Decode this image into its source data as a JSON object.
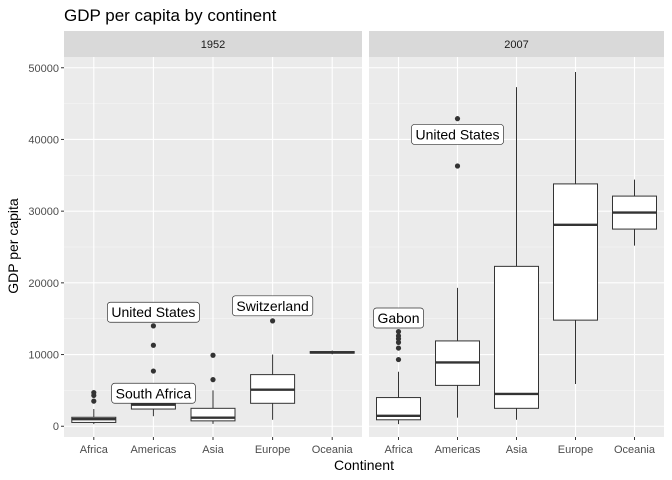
{
  "chart_data": {
    "type": "boxplot",
    "title": "GDP per capita by continent",
    "xlabel": "Continent",
    "ylabel": "GDP per capita",
    "ylim": [
      -1500,
      51500
    ],
    "yticks": [
      0,
      10000,
      20000,
      30000,
      40000,
      50000
    ],
    "ytick_labels": [
      "0",
      "10000",
      "20000",
      "30000",
      "40000",
      "50000"
    ],
    "categories": [
      "Africa",
      "Americas",
      "Asia",
      "Europe",
      "Oceania"
    ],
    "grid": true,
    "legend": "none",
    "facets": [
      {
        "label": "1952",
        "boxes": [
          {
            "category": "Africa",
            "min": 300,
            "q1": 530,
            "median": 990,
            "q3": 1250,
            "max": 2400,
            "outliers": [
              3500,
              4300,
              4700
            ]
          },
          {
            "category": "Americas",
            "min": 1400,
            "q1": 2400,
            "median": 3000,
            "q3": 3500,
            "max": 5000,
            "outliers": [
              7700,
              11300,
              14000
            ]
          },
          {
            "category": "Asia",
            "min": 330,
            "q1": 750,
            "median": 1200,
            "q3": 2500,
            "max": 5000,
            "outliers": [
              6500,
              9900
            ]
          },
          {
            "category": "Europe",
            "min": 900,
            "q1": 3200,
            "median": 5100,
            "q3": 7200,
            "max": 10000,
            "outliers": [
              14700
            ]
          },
          {
            "category": "Oceania",
            "min": 10040,
            "q1": 10190,
            "median": 10300,
            "q3": 10420,
            "max": 10560,
            "outliers": []
          }
        ],
        "annotations": [
          {
            "text": "South Africa",
            "category": "Americas",
            "y": 4600
          },
          {
            "text": "United States",
            "category": "Americas",
            "y": 15900
          },
          {
            "text": "Switzerland",
            "category": "Europe",
            "y": 16800
          }
        ]
      },
      {
        "label": "2007",
        "boxes": [
          {
            "category": "Africa",
            "min": 300,
            "q1": 900,
            "median": 1450,
            "q3": 4000,
            "max": 7600,
            "outliers": [
              9300,
              10900,
              11700,
              12200,
              12600,
              13200
            ]
          },
          {
            "category": "Americas",
            "min": 1200,
            "q1": 5700,
            "median": 8900,
            "q3": 11900,
            "max": 19300,
            "outliers": [
              36300,
              42900
            ]
          },
          {
            "category": "Asia",
            "min": 900,
            "q1": 2500,
            "median": 4500,
            "q3": 22300,
            "max": 47300,
            "outliers": []
          },
          {
            "category": "Europe",
            "min": 5900,
            "q1": 14800,
            "median": 28100,
            "q3": 33800,
            "max": 49400,
            "outliers": []
          },
          {
            "category": "Oceania",
            "min": 25200,
            "q1": 27500,
            "median": 29800,
            "q3": 32100,
            "max": 34400,
            "outliers": []
          }
        ],
        "annotations": [
          {
            "text": "United States",
            "category": "Americas",
            "y": 40700
          },
          {
            "text": "Gabon",
            "category": "Africa",
            "y": 15100
          }
        ]
      }
    ]
  }
}
